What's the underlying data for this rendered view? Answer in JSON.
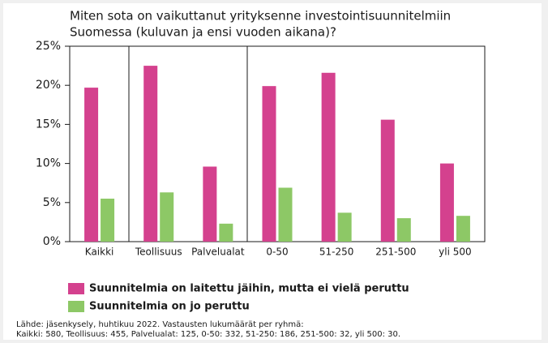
{
  "chart_data": {
    "type": "bar",
    "title": [
      "Miten sota on vaikuttanut yrityksenne investointisuunnitelmiin",
      "Suomessa (kuluvan ja ensi vuoden aikana)?"
    ],
    "categories": [
      "Kaikki",
      "Teollisuus",
      "Palvelualat",
      "0-50",
      "51-250",
      "251-500",
      "yli 500"
    ],
    "series": [
      {
        "name": "Suunnitelmia on laitettu jäihin, mutta ei vielä peruttu",
        "color": "#d4418e",
        "values": [
          19.7,
          22.5,
          9.6,
          19.9,
          21.6,
          15.6,
          10.0
        ]
      },
      {
        "name": "Suunnitelmia on jo peruttu",
        "color": "#8dc866",
        "values": [
          5.5,
          6.3,
          2.3,
          6.9,
          3.7,
          3.0,
          3.3
        ]
      }
    ],
    "ylim": [
      0,
      25
    ],
    "yticks": [
      {
        "value": 0,
        "label": "0%"
      },
      {
        "value": 5,
        "label": "5%"
      },
      {
        "value": 10,
        "label": "10%"
      },
      {
        "value": 15,
        "label": "15%"
      },
      {
        "value": 20,
        "label": "20%"
      },
      {
        "value": 25,
        "label": "25%"
      }
    ],
    "source": [
      "Lähde: jäsenkysely, huhtikuu 2022. Vastausten lukumäärät per ryhmä:",
      "Kaikki: 580, Teollisuus: 455, Palvelualat: 125, 0-50: 332, 51-250: 186, 251-500: 32, yli 500: 30."
    ]
  }
}
